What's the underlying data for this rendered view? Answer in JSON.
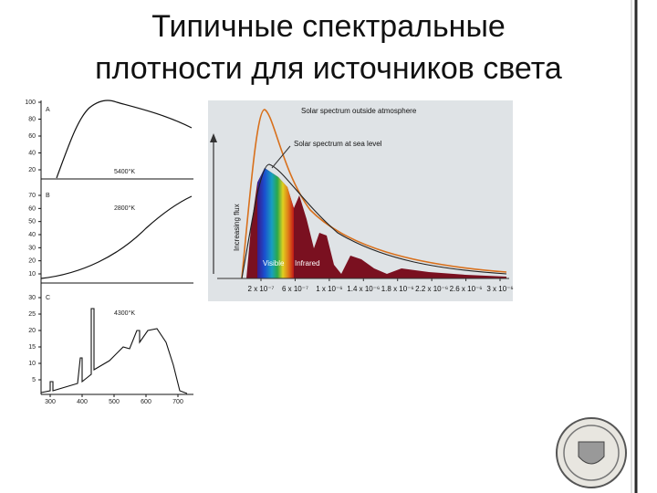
{
  "title": [
    "Типичные спектральные",
    "плотности для источников света"
  ],
  "left_figure": {
    "panels": [
      {
        "label": "A",
        "temperature": "5400°K",
        "yticks": [
          "100",
          "80",
          "60",
          "40",
          "20"
        ]
      },
      {
        "label": "B",
        "temperature": "2800°K",
        "yticks": [
          "70",
          "60",
          "50",
          "40",
          "30",
          "20",
          "10"
        ]
      },
      {
        "label": "C",
        "temperature": "4300°K",
        "yticks": [
          "30",
          "25",
          "20",
          "15",
          "10",
          "5"
        ]
      }
    ],
    "xticks": [
      "300",
      "400",
      "500",
      "600",
      "700"
    ]
  },
  "right_figure": {
    "outside_label": "Solar spectrum outside atmosphere",
    "sea_label": "Solar spectrum at sea level",
    "y_label": "Increasing flux",
    "visible_label": "Visible",
    "infrared_label": "Infrared",
    "xticks": [
      "2 x 10⁻⁷",
      "6 x 10⁻⁷",
      "1 x 10⁻⁶",
      "1.4 x 10⁻⁶",
      "1.8 x 10⁻⁶",
      "2.2 x 10⁻⁶",
      "2.6 x 10⁻⁶",
      "3 x 10⁻⁶"
    ]
  }
}
